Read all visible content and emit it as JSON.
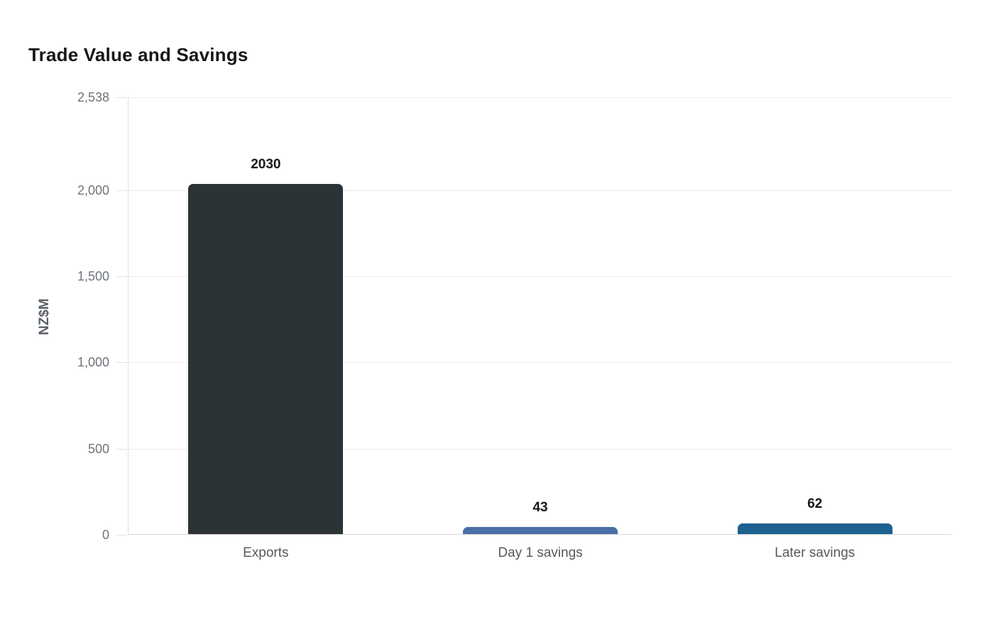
{
  "chart_data": {
    "type": "bar",
    "title": "Trade Value and Savings",
    "ylabel": "NZ$M",
    "xlabel": "",
    "categories": [
      "Exports",
      "Day 1 savings",
      "Later savings"
    ],
    "values": [
      2030,
      43,
      62
    ],
    "data_labels": [
      "2030",
      "43",
      "62"
    ],
    "bar_colors": [
      "#2b3337",
      "#4c6fa8",
      "#1d618e"
    ],
    "y_ticks": [
      0,
      500,
      1000,
      1500,
      2000,
      2538
    ],
    "y_tick_labels": [
      "0",
      "500",
      "1,000",
      "1,500",
      "2,000",
      "2,538"
    ],
    "ylim": [
      0,
      2538
    ],
    "grid": "horizontal",
    "legend_position": "none"
  }
}
